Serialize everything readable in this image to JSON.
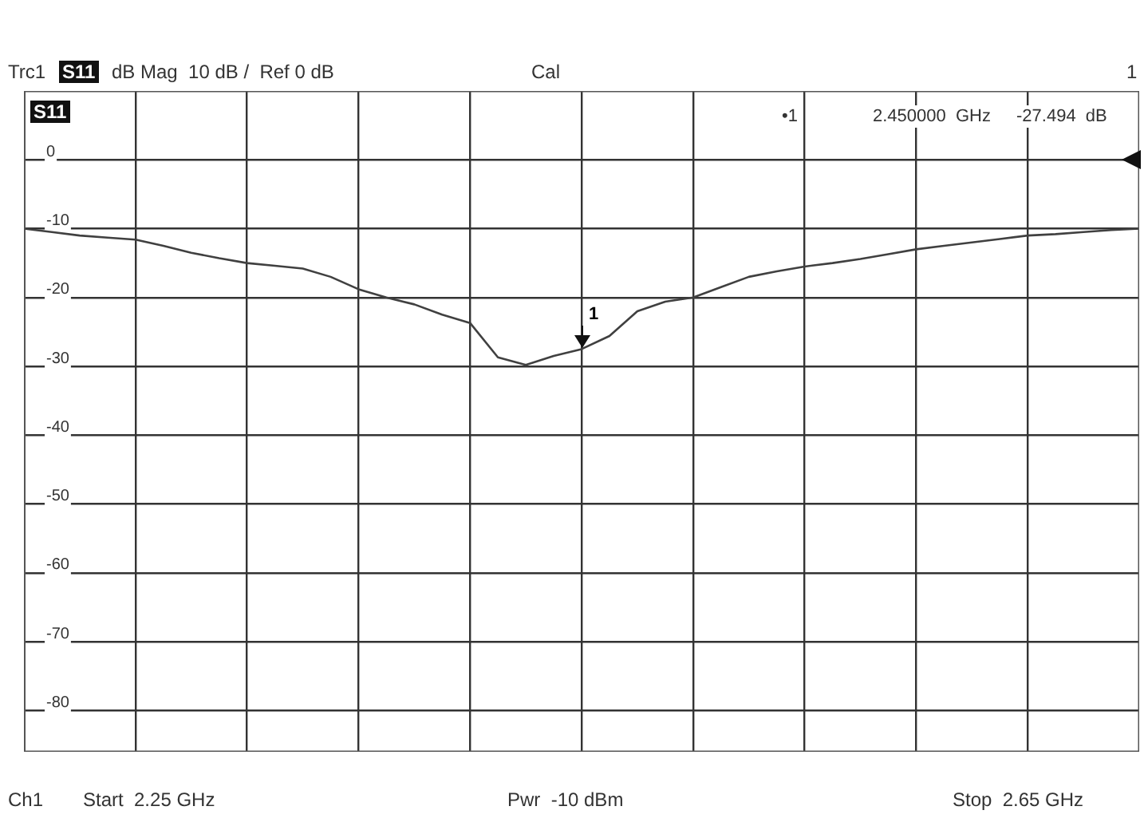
{
  "chart_data": {
    "type": "line",
    "categories": [
      null,
      null,
      null,
      null,
      null,
      null,
      null,
      null,
      null,
      null,
      null,
      null,
      null,
      null,
      null,
      null,
      null,
      null,
      null,
      null,
      null,
      null,
      null,
      null,
      null,
      null,
      null,
      null,
      null,
      null,
      null,
      null,
      null,
      null,
      null,
      null,
      null,
      null,
      null,
      null,
      null
    ],
    "series": [
      {
        "color": "#404040",
        "values": [
          -10,
          -10.5,
          -11,
          -11.3,
          -11.6,
          -12.5,
          -13.5,
          -14.3,
          -15,
          -15.4,
          -15.8,
          -17,
          -18.8,
          -20,
          -21,
          -22.5,
          -23.7,
          -28.7,
          -29.8,
          -28.5,
          -27.5,
          -25.6,
          -22,
          -20.6,
          -20,
          -18.5,
          -17,
          -16.2,
          -15.5,
          -15,
          -14.4,
          -13.7,
          -13,
          -12.5,
          -12,
          -11.5,
          -11,
          -10.8,
          -10.5,
          -10.2,
          -10
        ]
      }
    ],
    "ylim": [
      -86,
      10
    ],
    "yticks": [
      0,
      -10,
      -20,
      -30,
      -40,
      -50,
      -60,
      -70,
      -80
    ],
    "tick_labels": "y",
    "grid": true,
    "legend": false,
    "marker": "none",
    "line_style": "solid",
    "annotations": [
      "Trc1",
      "S11",
      "dB Mag  10 dB /  Ref 0 dB",
      "Cal",
      "1",
      "S11",
      "•1",
      "2.450000  GHz",
      "-27.494  dB",
      "Ch1",
      "Start  2.25 GHz",
      "Pwr  -10 dBm",
      "Stop  2.65 GHz",
      "1"
    ]
  }
}
